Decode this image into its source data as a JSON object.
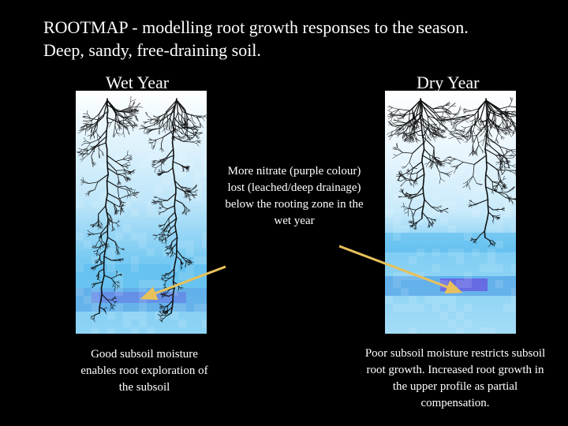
{
  "slide": {
    "title_line1": "ROOTMAP - modelling root growth responses to the season.",
    "title_line2": "Deep, sandy, free-draining soil."
  },
  "panels": {
    "wet": {
      "label": "Wet Year"
    },
    "dry": {
      "label": "Dry Year"
    }
  },
  "annotations": {
    "center": "More nitrate (purple colour) lost (leached/deep drainage) below the rooting zone in the wet year",
    "left": "Good subsoil moisture enables root exploration of the subsoil",
    "right": "Poor subsoil moisture restricts subsoil root growth. Increased root growth in the upper profile as partial compensation."
  },
  "colors": {
    "background": "#000000",
    "text": "#ffffff",
    "arrow": "#e8c15a",
    "soil_blue": "#4fb8ee",
    "nitrate_purple": "#6a4fe0",
    "root": "#111111"
  }
}
